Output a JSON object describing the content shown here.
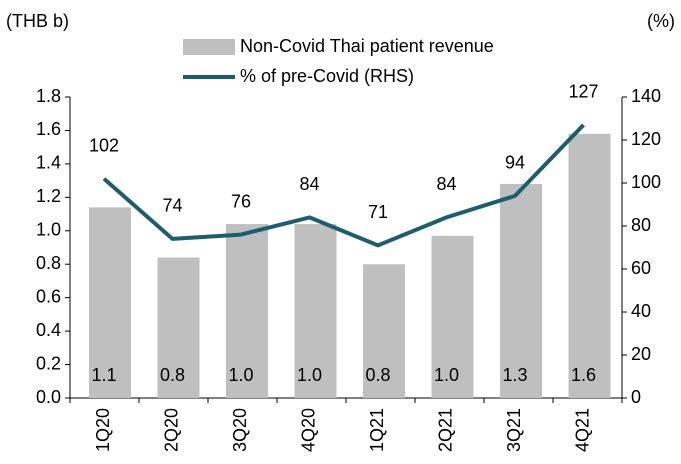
{
  "chart_data": {
    "type": "bar",
    "y_label": "(THB b)",
    "y2_label": "(%)",
    "categories": [
      "1Q20",
      "2Q20",
      "3Q20",
      "4Q20",
      "1Q21",
      "2Q21",
      "3Q21",
      "4Q21"
    ],
    "series": [
      {
        "name": "Non-Covid Thai patient revenue",
        "type": "bar",
        "color": "#bfbfbf",
        "values": [
          1.14,
          0.84,
          1.04,
          1.04,
          0.8,
          0.97,
          1.28,
          1.58
        ],
        "value_labels": [
          "1.1",
          "0.8",
          "1.0",
          "1.0",
          "0.8",
          "1.0",
          "1.3",
          "1.6"
        ]
      },
      {
        "name": "% of pre-Covid (RHS)",
        "type": "line",
        "axis": "y2",
        "color": "#1a5e6f",
        "values": [
          102,
          74,
          76,
          84,
          71,
          84,
          94,
          127
        ]
      }
    ],
    "ylim": [
      0,
      1.8
    ],
    "yticks": [
      {
        "value": 0,
        "label": "0.0"
      },
      {
        "value": 0.2,
        "label": "0.2"
      },
      {
        "value": 0.4,
        "label": "0.4"
      },
      {
        "value": 0.6,
        "label": "0.6"
      },
      {
        "value": 0.8,
        "label": "0.8"
      },
      {
        "value": 1,
        "label": "1.0"
      },
      {
        "value": 1.2,
        "label": "1.2"
      },
      {
        "value": 1.4,
        "label": "1.4"
      },
      {
        "value": 1.6,
        "label": "1.6"
      },
      {
        "value": 1.8,
        "label": "1.8"
      }
    ],
    "y2lim": [
      0,
      140
    ],
    "y2ticks": [
      0,
      20,
      40,
      60,
      80,
      100,
      120,
      140
    ],
    "legend": "top"
  }
}
